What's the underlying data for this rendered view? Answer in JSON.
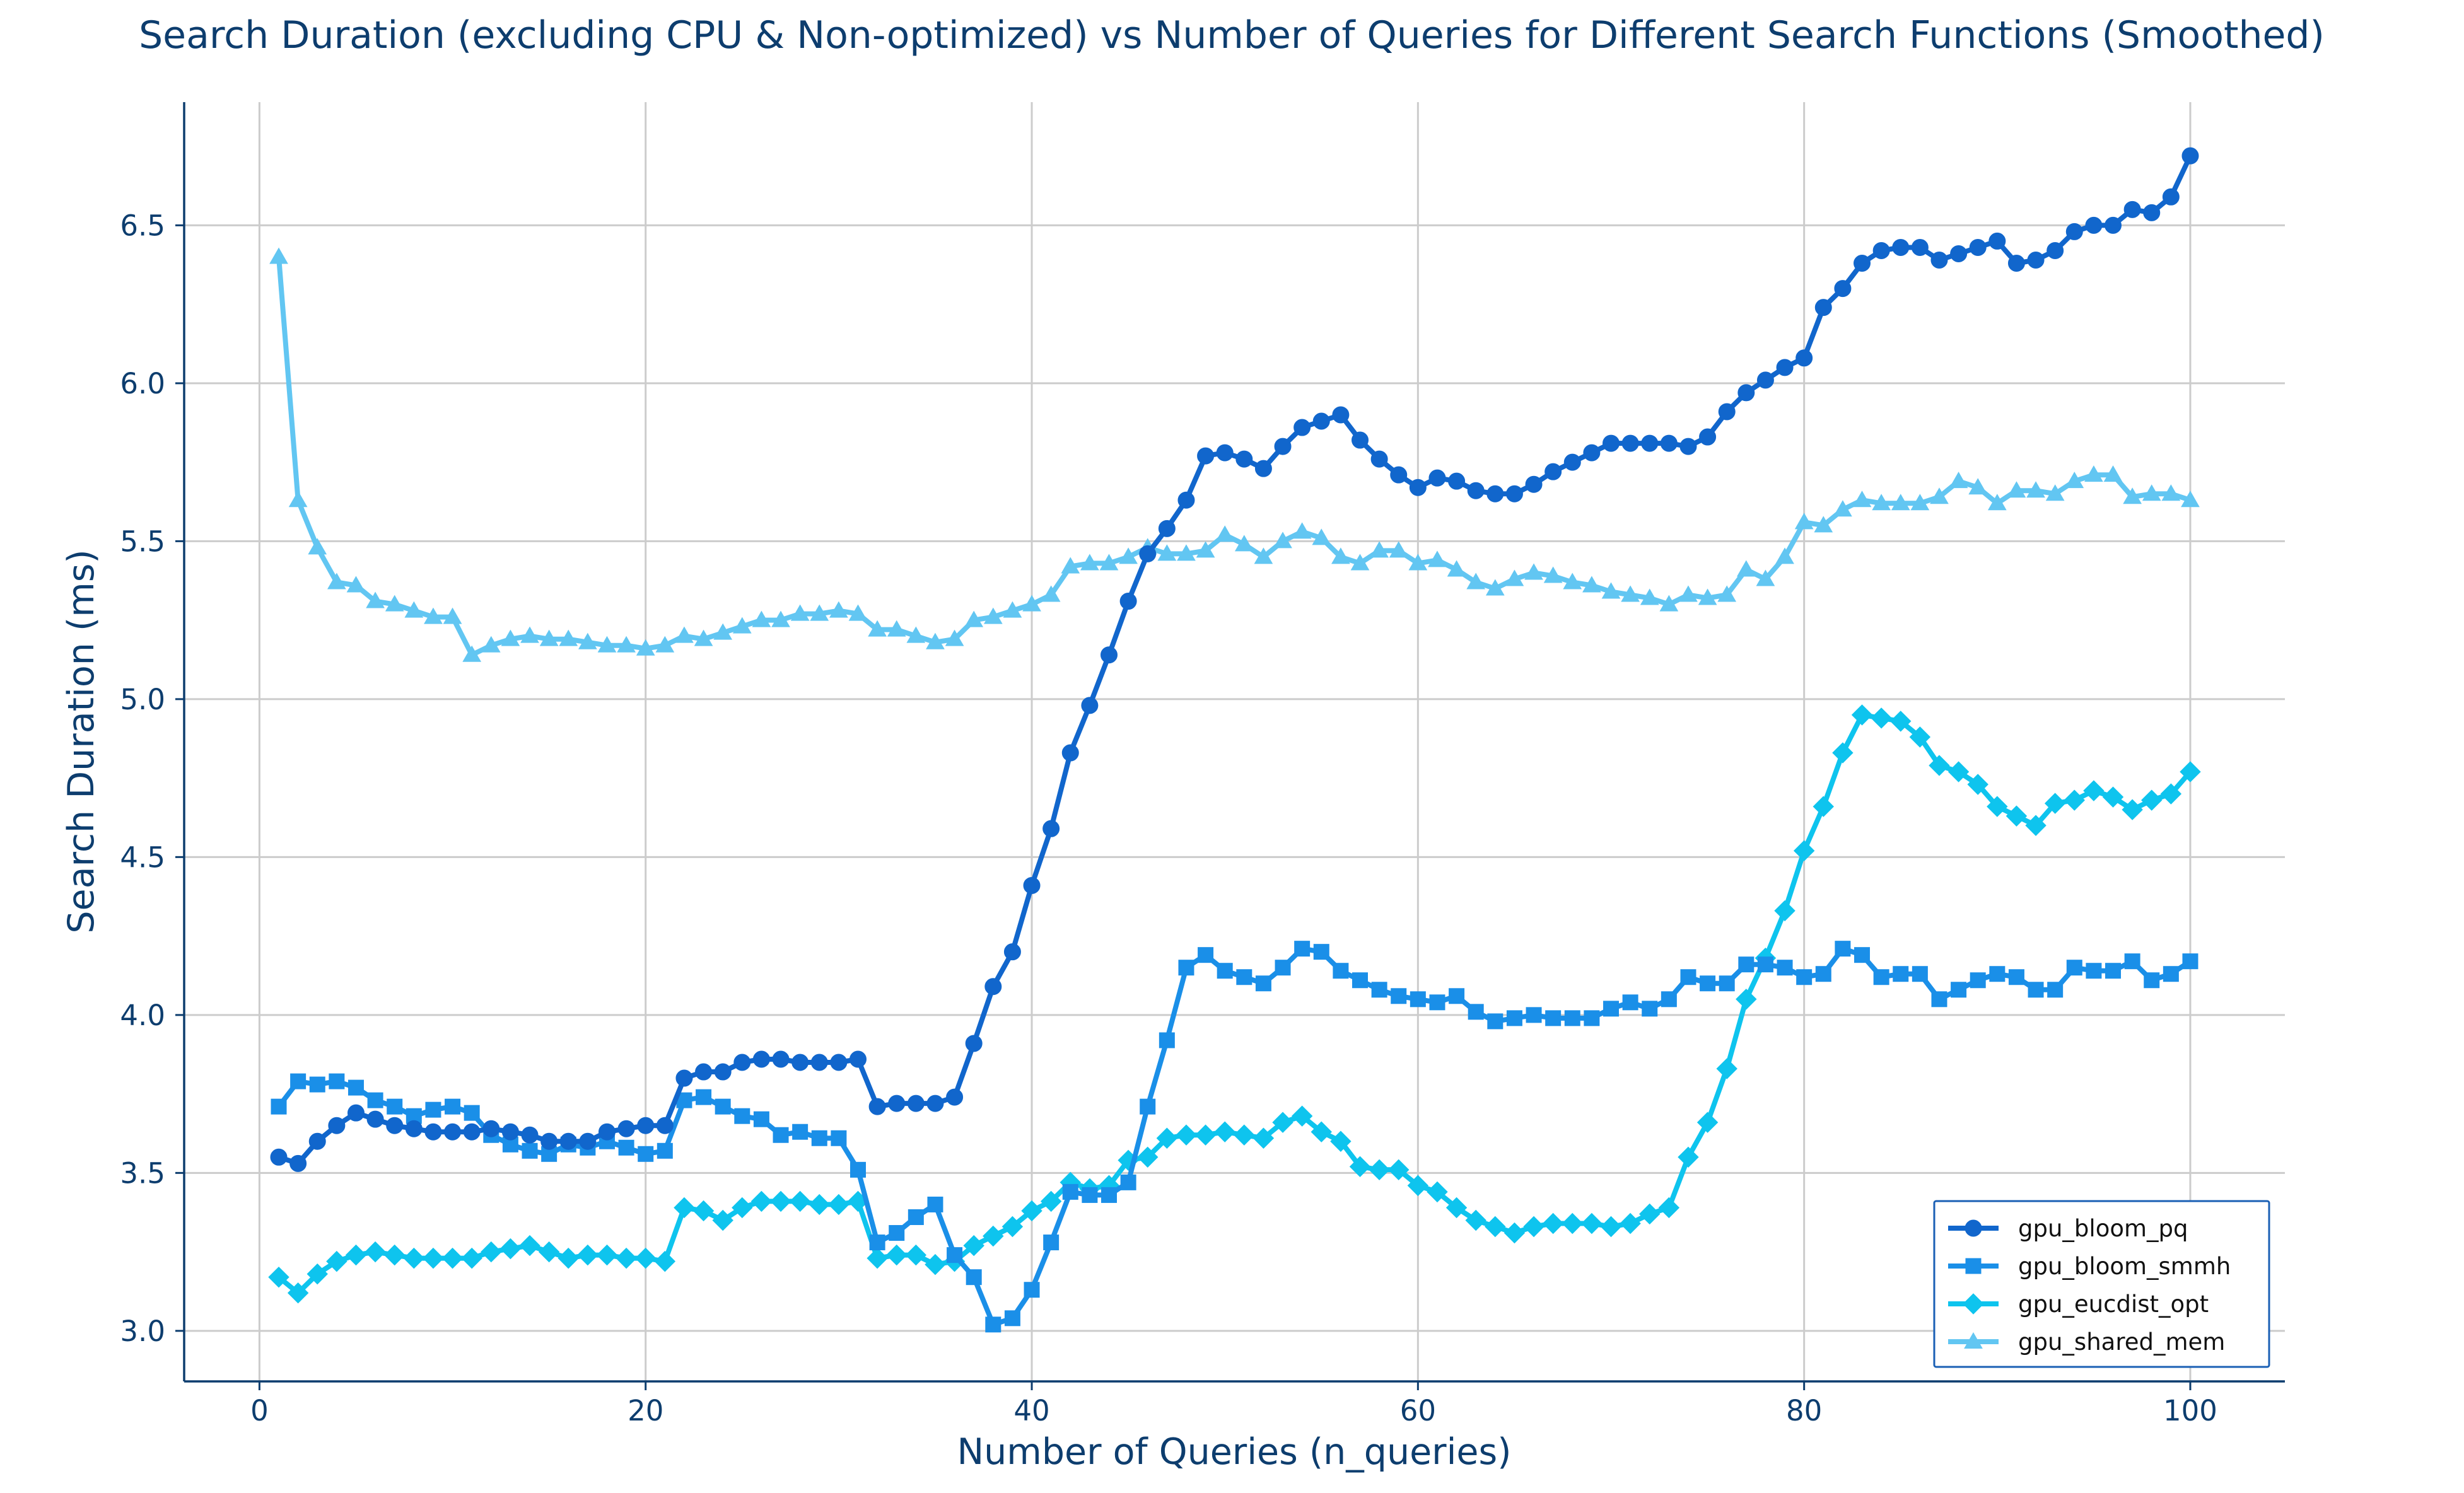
{
  "chart_data": {
    "type": "line",
    "title": "Search Duration (excluding CPU & Non-optimized) vs Number of Queries for Different Search Functions (Smoothed)",
    "xlabel": "Number of Queries (n_queries)",
    "ylabel": "Search Duration (ms)",
    "xlim": [
      -3.9,
      104.9
    ],
    "ylim": [
      2.84,
      6.89
    ],
    "xticks": [
      0,
      20,
      40,
      60,
      80,
      100
    ],
    "yticks": [
      3.0,
      3.5,
      4.0,
      4.5,
      5.0,
      5.5,
      6.0,
      6.5
    ],
    "xtick_labels": [
      "0",
      "20",
      "40",
      "60",
      "80",
      "100"
    ],
    "ytick_labels": [
      "3.0",
      "3.5",
      "4.0",
      "4.5",
      "5.0",
      "5.5",
      "6.0",
      "6.5"
    ],
    "grid": true,
    "legend_position": "lower-right",
    "x": [
      1,
      2,
      3,
      4,
      5,
      6,
      7,
      8,
      9,
      10,
      11,
      12,
      13,
      14,
      15,
      16,
      17,
      18,
      19,
      20,
      21,
      22,
      23,
      24,
      25,
      26,
      27,
      28,
      29,
      30,
      31,
      32,
      33,
      34,
      35,
      36,
      37,
      38,
      39,
      40,
      41,
      42,
      43,
      44,
      45,
      46,
      47,
      48,
      49,
      50,
      51,
      52,
      53,
      54,
      55,
      56,
      57,
      58,
      59,
      60,
      61,
      62,
      63,
      64,
      65,
      66,
      67,
      68,
      69,
      70,
      71,
      72,
      73,
      74,
      75,
      76,
      77,
      78,
      79,
      80,
      81,
      82,
      83,
      84,
      85,
      86,
      87,
      88,
      89,
      90,
      91,
      92,
      93,
      94,
      95,
      96,
      97,
      98,
      99,
      100
    ],
    "series": [
      {
        "name": "gpu_bloom_pq",
        "color": "#1166cc",
        "marker": "circle",
        "values": [
          3.55,
          3.53,
          3.6,
          3.65,
          3.69,
          3.67,
          3.65,
          3.64,
          3.63,
          3.63,
          3.63,
          3.64,
          3.63,
          3.62,
          3.6,
          3.6,
          3.6,
          3.63,
          3.64,
          3.65,
          3.65,
          3.8,
          3.82,
          3.82,
          3.85,
          3.86,
          3.86,
          3.85,
          3.85,
          3.85,
          3.86,
          3.71,
          3.72,
          3.72,
          3.72,
          3.74,
          3.91,
          4.09,
          4.2,
          4.41,
          4.59,
          4.83,
          4.98,
          5.14,
          5.31,
          5.46,
          5.54,
          5.63,
          5.77,
          5.78,
          5.76,
          5.73,
          5.8,
          5.86,
          5.88,
          5.9,
          5.82,
          5.76,
          5.71,
          5.67,
          5.7,
          5.69,
          5.66,
          5.65,
          5.65,
          5.68,
          5.72,
          5.75,
          5.78,
          5.81,
          5.81,
          5.81,
          5.81,
          5.8,
          5.83,
          5.91,
          5.97,
          6.01,
          6.05,
          6.08,
          6.24,
          6.3,
          6.38,
          6.42,
          6.43,
          6.43,
          6.39,
          6.41,
          6.43,
          6.45,
          6.38,
          6.39,
          6.42,
          6.48,
          6.5,
          6.5,
          6.55,
          6.54,
          6.59,
          6.72
        ]
      },
      {
        "name": "gpu_bloom_smmh",
        "color": "#1a8fe8",
        "marker": "square",
        "values": [
          3.71,
          3.79,
          3.78,
          3.79,
          3.77,
          3.73,
          3.71,
          3.68,
          3.7,
          3.71,
          3.69,
          3.62,
          3.59,
          3.57,
          3.56,
          3.59,
          3.58,
          3.6,
          3.58,
          3.56,
          3.57,
          3.73,
          3.74,
          3.71,
          3.68,
          3.67,
          3.62,
          3.63,
          3.61,
          3.61,
          3.51,
          3.28,
          3.31,
          3.36,
          3.4,
          3.24,
          3.17,
          3.02,
          3.04,
          3.13,
          3.28,
          3.44,
          3.43,
          3.43,
          3.47,
          3.71,
          3.92,
          4.15,
          4.19,
          4.14,
          4.12,
          4.1,
          4.15,
          4.21,
          4.2,
          4.14,
          4.11,
          4.08,
          4.06,
          4.05,
          4.04,
          4.06,
          4.01,
          3.98,
          3.99,
          4.0,
          3.99,
          3.99,
          3.99,
          4.02,
          4.04,
          4.02,
          4.05,
          4.12,
          4.1,
          4.1,
          4.16,
          4.16,
          4.15,
          4.12,
          4.13,
          4.21,
          4.19,
          4.12,
          4.13,
          4.13,
          4.05,
          4.08,
          4.11,
          4.13,
          4.12,
          4.08,
          4.08,
          4.15,
          4.14,
          4.14,
          4.17,
          4.11,
          4.13,
          4.17
        ]
      },
      {
        "name": "gpu_eucdist_opt",
        "color": "#0ec4ee",
        "marker": "diamond",
        "values": [
          3.17,
          3.12,
          3.18,
          3.22,
          3.24,
          3.25,
          3.24,
          3.23,
          3.23,
          3.23,
          3.23,
          3.25,
          3.26,
          3.27,
          3.25,
          3.23,
          3.24,
          3.24,
          3.23,
          3.23,
          3.22,
          3.39,
          3.38,
          3.35,
          3.39,
          3.41,
          3.41,
          3.41,
          3.4,
          3.4,
          3.41,
          3.23,
          3.24,
          3.24,
          3.21,
          3.22,
          3.27,
          3.3,
          3.33,
          3.38,
          3.41,
          3.47,
          3.45,
          3.46,
          3.54,
          3.55,
          3.61,
          3.62,
          3.62,
          3.63,
          3.62,
          3.61,
          3.66,
          3.68,
          3.63,
          3.6,
          3.52,
          3.51,
          3.51,
          3.46,
          3.44,
          3.39,
          3.35,
          3.33,
          3.31,
          3.33,
          3.34,
          3.34,
          3.34,
          3.33,
          3.34,
          3.37,
          3.39,
          3.55,
          3.66,
          3.83,
          4.05,
          4.18,
          4.33,
          4.52,
          4.66,
          4.83,
          4.95,
          4.94,
          4.93,
          4.88,
          4.79,
          4.77,
          4.73,
          4.66,
          4.63,
          4.6,
          4.67,
          4.68,
          4.71,
          4.69,
          4.65,
          4.68,
          4.7,
          4.77
        ]
      },
      {
        "name": "gpu_shared_mem",
        "color": "#62c6f2",
        "marker": "triangle",
        "values": [
          6.4,
          5.63,
          5.48,
          5.37,
          5.36,
          5.31,
          5.3,
          5.28,
          5.26,
          5.26,
          5.14,
          5.17,
          5.19,
          5.2,
          5.19,
          5.19,
          5.18,
          5.17,
          5.17,
          5.16,
          5.17,
          5.2,
          5.19,
          5.21,
          5.23,
          5.25,
          5.25,
          5.27,
          5.27,
          5.28,
          5.27,
          5.22,
          5.22,
          5.2,
          5.18,
          5.19,
          5.25,
          5.26,
          5.28,
          5.3,
          5.33,
          5.42,
          5.43,
          5.43,
          5.45,
          5.48,
          5.46,
          5.46,
          5.47,
          5.52,
          5.49,
          5.45,
          5.5,
          5.53,
          5.51,
          5.45,
          5.43,
          5.47,
          5.47,
          5.43,
          5.44,
          5.41,
          5.37,
          5.35,
          5.38,
          5.4,
          5.39,
          5.37,
          5.36,
          5.34,
          5.33,
          5.32,
          5.3,
          5.33,
          5.32,
          5.33,
          5.41,
          5.38,
          5.45,
          5.56,
          5.55,
          5.6,
          5.63,
          5.62,
          5.62,
          5.62,
          5.64,
          5.69,
          5.67,
          5.62,
          5.66,
          5.66,
          5.65,
          5.69,
          5.71,
          5.71,
          5.64,
          5.65,
          5.65,
          5.63
        ]
      }
    ]
  }
}
